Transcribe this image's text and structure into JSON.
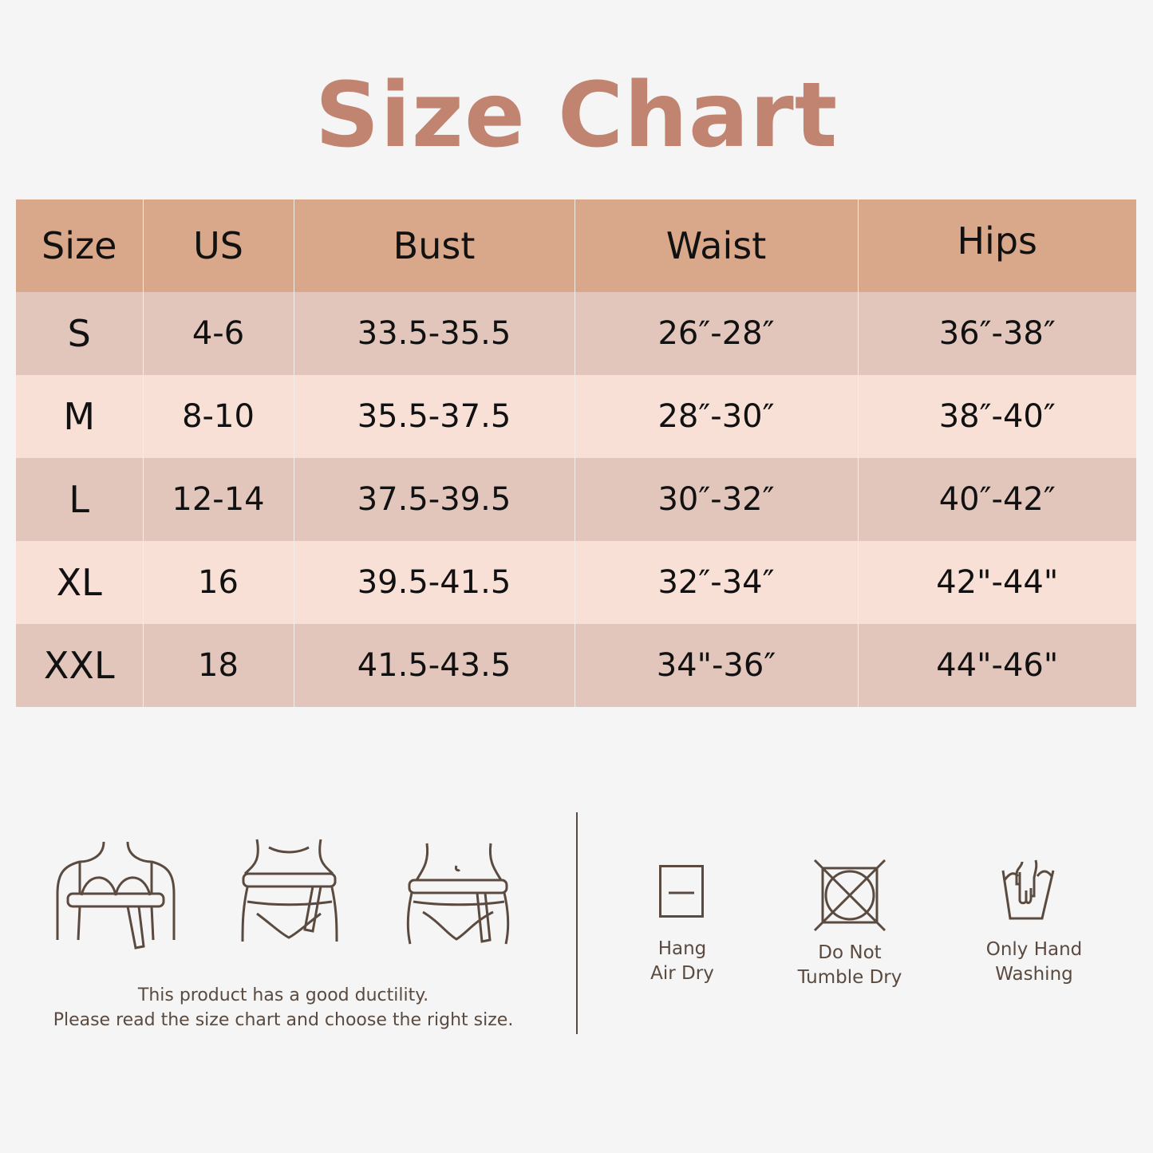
{
  "title": "Size Chart",
  "table": {
    "headers": [
      "Size",
      "US",
      "Bust",
      "Waist",
      "Hips"
    ],
    "rows": [
      [
        "S",
        "4-6",
        "33.5-35.5",
        "26″-28″",
        "36″-38″"
      ],
      [
        "M",
        "8-10",
        "35.5-37.5",
        "28″-30″",
        "38″-40″"
      ],
      [
        "L",
        "12-14",
        "37.5-39.5",
        "30″-32″",
        "40″-42″"
      ],
      [
        "XL",
        "16",
        "39.5-41.5",
        "32″-34″",
        "42\"-44\""
      ],
      [
        "XXL",
        "18",
        "41.5-43.5",
        "34\"-36″",
        "44\"-46\""
      ]
    ]
  },
  "measure_icons": [
    "bust-measure-icon",
    "waist-measure-icon",
    "hips-measure-icon"
  ],
  "note": {
    "line1": "This product has a good ductility.",
    "line2": "Please read the size chart and choose the right size."
  },
  "care": [
    {
      "icon": "hang-dry-icon",
      "line1": "Hang",
      "line2": "Air Dry"
    },
    {
      "icon": "no-tumble-dry-icon",
      "line1": "Do Not",
      "line2": "Tumble Dry"
    },
    {
      "icon": "hand-wash-icon",
      "line1": "Only Hand",
      "line2": "Washing"
    }
  ],
  "colors": {
    "title": "#c08470",
    "header": "#d9a88a",
    "row_dark": "#e2c6bb",
    "row_light": "#f8e0d7",
    "icon": "#5a4a3f",
    "background": "#f5f5f5"
  }
}
